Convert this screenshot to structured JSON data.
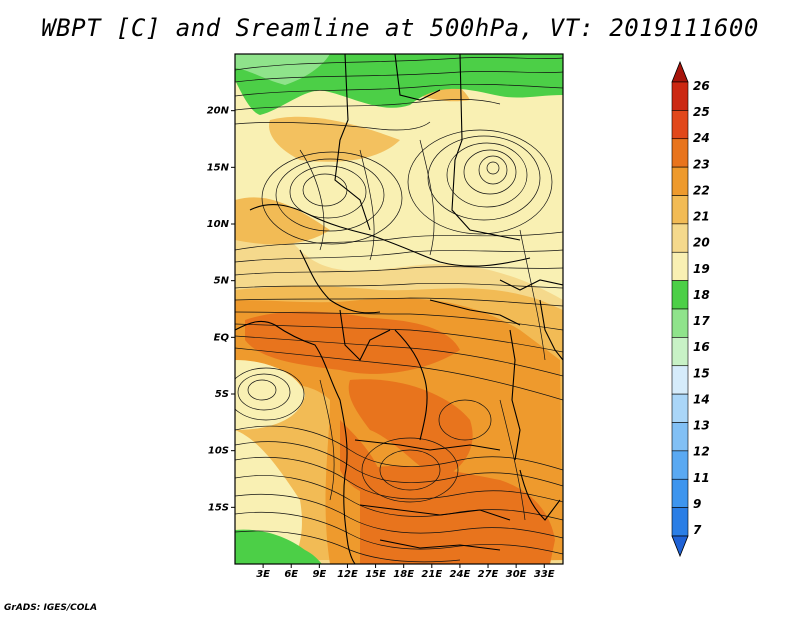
{
  "title": "WBPT [C] and Sreamline at 500hPa, VT: 2019111600",
  "credit": "GrADS: IGES/COLA",
  "map": {
    "lon_range": [
      0,
      35
    ],
    "lat_range": [
      -20,
      25
    ],
    "lon_ticks": [
      "3E",
      "6E",
      "9E",
      "12E",
      "15E",
      "18E",
      "21E",
      "24E",
      "27E",
      "30E",
      "33E"
    ],
    "lon_tick_values": [
      3,
      6,
      9,
      12,
      15,
      18,
      21,
      24,
      27,
      30,
      33
    ],
    "lat_ticks": [
      "20N",
      "15N",
      "10N",
      "5N",
      "EQ",
      "5S",
      "10S",
      "15S"
    ],
    "lat_tick_values": [
      20,
      15,
      10,
      5,
      0,
      -5,
      -10,
      -15
    ]
  },
  "colorbar": {
    "labels": [
      "7",
      "9",
      "11",
      "12",
      "13",
      "14",
      "15",
      "16",
      "17",
      "18",
      "19",
      "20",
      "21",
      "22",
      "23",
      "24",
      "25",
      "26"
    ],
    "colors": [
      "#1f62d6",
      "#2a7ee6",
      "#3d95ef",
      "#5aa9f2",
      "#82c0f5",
      "#aad6f8",
      "#d6ecfb",
      "#c8f2c6",
      "#8fe38b",
      "#4ccf47",
      "#f9f0b3",
      "#f5d98c",
      "#f2bb55",
      "#ee9a2d",
      "#e8741d",
      "#e1481b",
      "#cc2812",
      "#a7140b"
    ]
  }
}
